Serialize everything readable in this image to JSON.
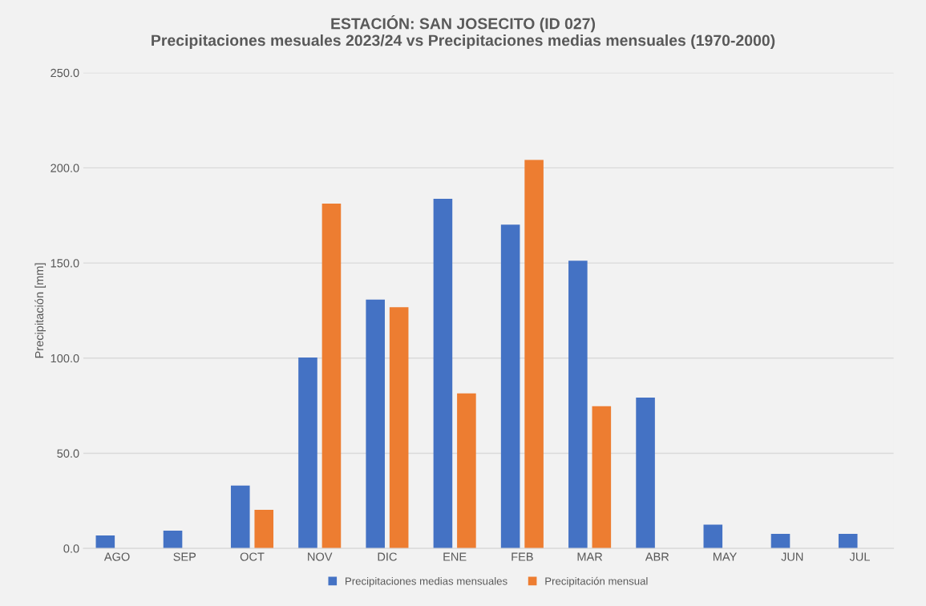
{
  "chart_data": {
    "type": "bar",
    "title": "ESTACIÓN: SAN JOSECITO (ID 027)\nPrecipitaciones mesuales 2023/24 vs Precipitaciones medias mensuales (1970-2000)",
    "ylabel": "Precipitación [mm]",
    "categories": [
      "AGO",
      "SEP",
      "OCT",
      "NOV",
      "DIC",
      "ENE",
      "FEB",
      "MAR",
      "ABR",
      "MAY",
      "JUN",
      "JUL"
    ],
    "series": [
      {
        "name": "Precipitaciones medias mensuales",
        "color": "#4472c4",
        "values": [
          6.8,
          9.3,
          33.0,
          100.3,
          130.8,
          183.7,
          170.2,
          151.2,
          79.3,
          12.5,
          7.7,
          7.7
        ]
      },
      {
        "name": "Precipitación mensual",
        "color": "#ed7d31",
        "values": [
          null,
          null,
          20.3,
          181.2,
          126.8,
          81.5,
          204.2,
          74.7,
          null,
          null,
          null,
          null
        ]
      }
    ],
    "ylim": [
      0,
      250
    ],
    "yticks": [
      {
        "value": 0,
        "label": "0.0"
      },
      {
        "value": 50,
        "label": "50.0"
      },
      {
        "value": 100,
        "label": "100.0"
      },
      {
        "value": 150,
        "label": "150.0"
      },
      {
        "value": 200,
        "label": "200.0"
      },
      {
        "value": 250,
        "label": "250.0"
      }
    ],
    "grid": "y",
    "legend": "bottom"
  }
}
